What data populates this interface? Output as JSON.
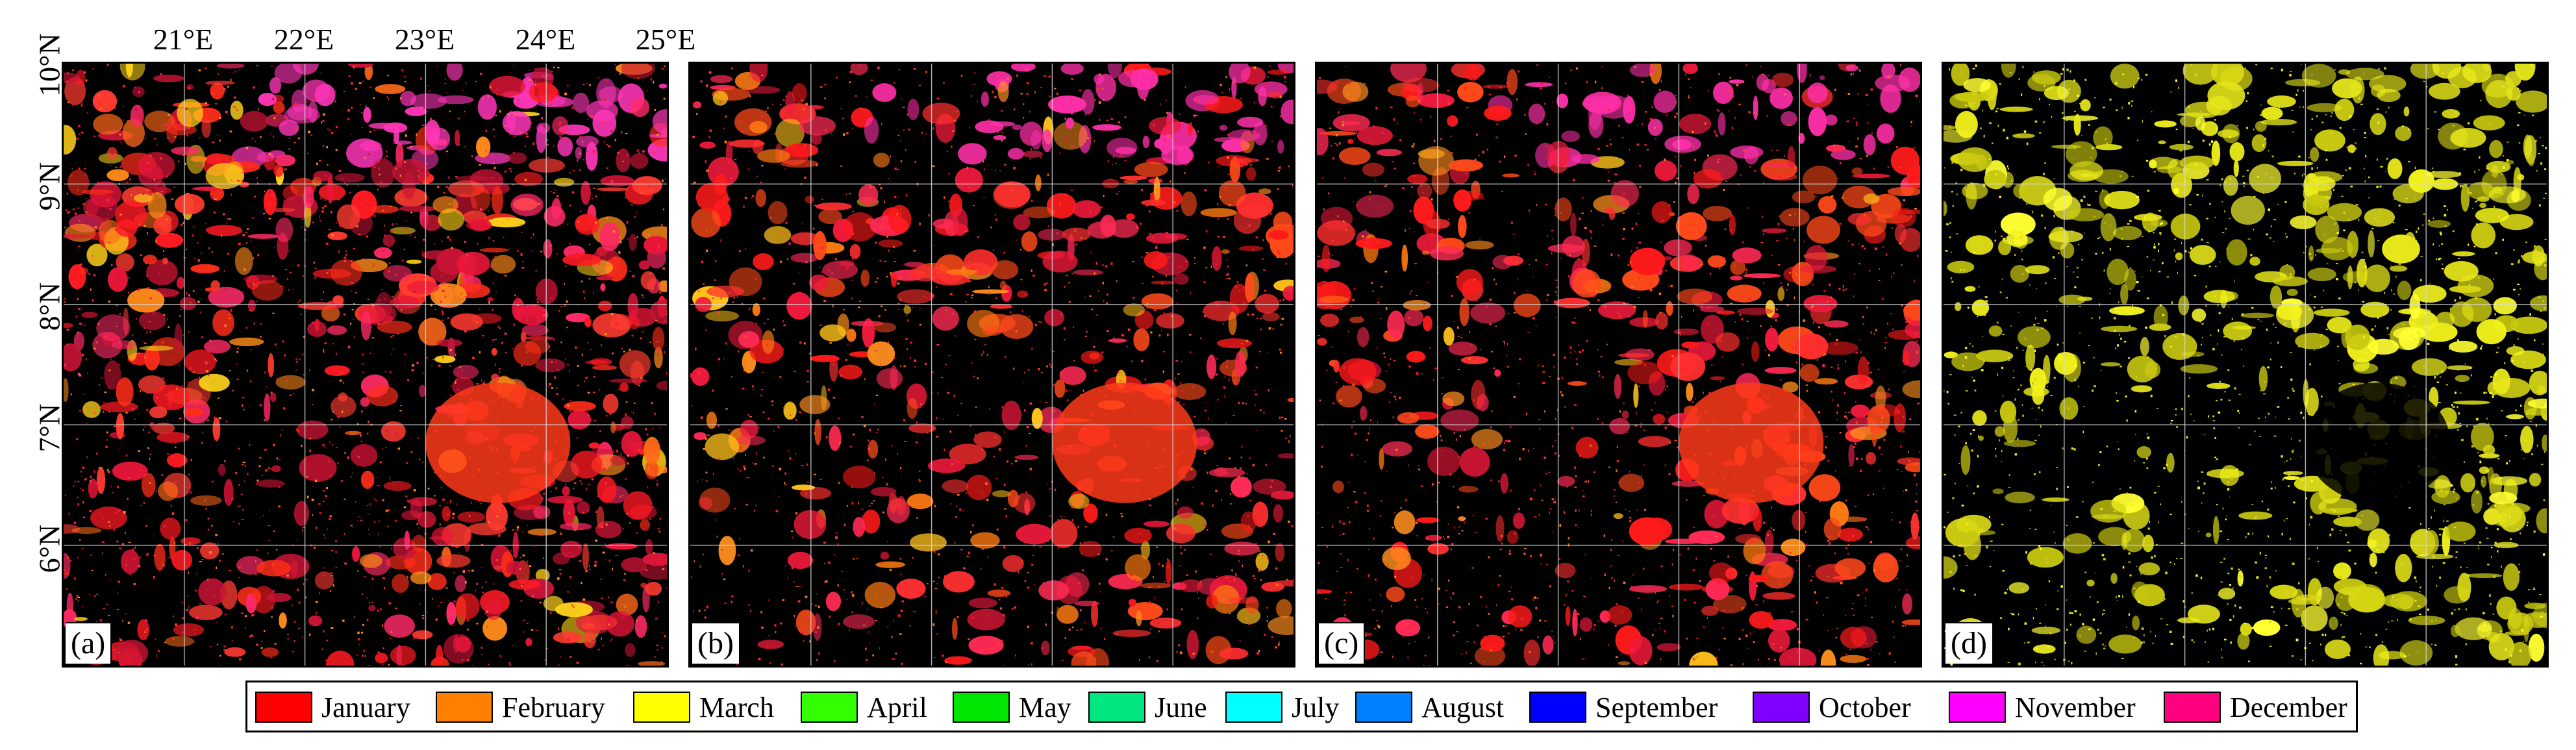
{
  "longitude_labels": [
    "21°E",
    "22°E",
    "23°E",
    "24°E",
    "25°E"
  ],
  "latitude_labels": [
    "10°N",
    "9°N",
    "8°N",
    "7°N",
    "6°N"
  ],
  "panels": [
    {
      "tag": "(a)",
      "palette": [
        "#ff1a22",
        "#e8163a",
        "#ff2d1a",
        "#ff2a66",
        "#c81436",
        "#ff3b30"
      ],
      "accent": [
        "#ff8a1a",
        "#ffd21a",
        "#ff6a1a"
      ],
      "top_tint": "#ff36b8",
      "density": 0.78
    },
    {
      "tag": "(b)",
      "palette": [
        "#ff1a1a",
        "#ff2a55",
        "#f01a3c",
        "#ff4a1a",
        "#ff2f2f"
      ],
      "accent": [
        "#ff7a12",
        "#ff8f1f",
        "#ffc11a"
      ],
      "top_tint": "#ff2fa8",
      "density": 0.55
    },
    {
      "tag": "(c)",
      "palette": [
        "#ff1a1a",
        "#ff2a55",
        "#f01a3c",
        "#ff4a1a",
        "#ff2f2f"
      ],
      "accent": [
        "#ff7a12",
        "#ff8f1f",
        "#ffc11a"
      ],
      "top_tint": "#ff2fa8",
      "density": 0.55
    },
    {
      "tag": "(d)",
      "palette": [
        "#e6e61a",
        "#f2f21c",
        "#d8d814",
        "#c8c810"
      ],
      "accent": [
        "#ffff33"
      ],
      "top_tint": "#e6e61a",
      "density": 0.6
    }
  ],
  "legend": [
    {
      "label": "January",
      "color": "#ff0000"
    },
    {
      "label": "February",
      "color": "#ff7f00"
    },
    {
      "label": "March",
      "color": "#ffff00"
    },
    {
      "label": "April",
      "color": "#33ff00"
    },
    {
      "label": "May",
      "color": "#00e600"
    },
    {
      "label": "June",
      "color": "#00e680"
    },
    {
      "label": "July",
      "color": "#00ffff"
    },
    {
      "label": "August",
      "color": "#0080ff"
    },
    {
      "label": "September",
      "color": "#0000ff"
    },
    {
      "label": "October",
      "color": "#8000ff"
    },
    {
      "label": "November",
      "color": "#ff00ff"
    },
    {
      "label": "December",
      "color": "#ff0080"
    }
  ]
}
